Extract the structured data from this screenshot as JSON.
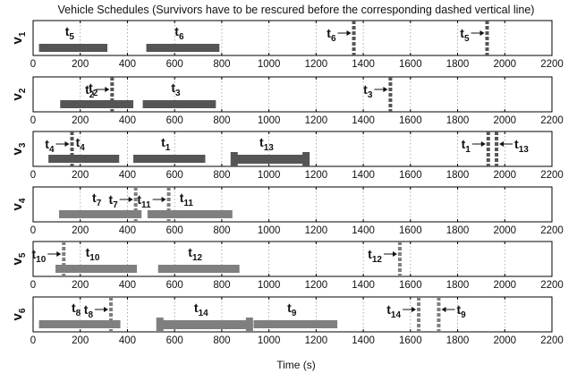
{
  "colors": {
    "dark": "#555555",
    "light": "#7f7f7f",
    "axis": "#000000",
    "grid": "#9a9a9a"
  },
  "chart_data": {
    "type": "gantt",
    "title": "Vehicle Schedules (Survivors have to be rescured before the corresponding dashed vertical line)",
    "xlabel": "Time (s)",
    "xlim": [
      0,
      2200
    ],
    "xticks": [
      "0",
      "200",
      "400",
      "600",
      "800",
      "1000",
      "1200",
      "1400",
      "1600",
      "1800",
      "2000",
      "2200"
    ],
    "grid": "vertical dotted",
    "vehicles": [
      {
        "label": "v",
        "sub": "1",
        "shade": "dark",
        "tasks": [
          {
            "task": "t",
            "sub": "5",
            "start": 25,
            "end": 315,
            "thick": false
          },
          {
            "task": "t",
            "sub": "6",
            "start": 480,
            "end": 790,
            "thick": false
          }
        ],
        "deadlines": [
          {
            "task": "t",
            "sub": "6",
            "time": 1360,
            "side": "left"
          },
          {
            "task": "t",
            "sub": "5",
            "time": 1925,
            "side": "left"
          }
        ]
      },
      {
        "label": "v",
        "sub": "2",
        "shade": "dark",
        "tasks": [
          {
            "task": "t",
            "sub": "2",
            "start": 115,
            "end": 425,
            "thick": false
          },
          {
            "task": "t",
            "sub": "3",
            "start": 465,
            "end": 775,
            "thick": false
          }
        ],
        "deadlines": [
          {
            "task": "t",
            "sub": "2",
            "time": 335,
            "side": "left"
          },
          {
            "task": "t",
            "sub": "3",
            "time": 1515,
            "side": "left"
          }
        ]
      },
      {
        "label": "v",
        "sub": "3",
        "shade": "dark",
        "tasks": [
          {
            "task": "t",
            "sub": "4",
            "start": 65,
            "end": 365,
            "thick": false
          },
          {
            "task": "t",
            "sub": "1",
            "start": 425,
            "end": 730,
            "thick": false
          },
          {
            "task": "t",
            "sub": "13",
            "start": 845,
            "end": 1165,
            "thick": true
          }
        ],
        "deadlines": [
          {
            "task": "t",
            "sub": "4",
            "time": 165,
            "side": "left"
          },
          {
            "task": "t",
            "sub": "1",
            "time": 1930,
            "side": "left"
          },
          {
            "task": "t",
            "sub": "13",
            "time": 1965,
            "side": "right"
          }
        ]
      },
      {
        "label": "v",
        "sub": "4",
        "shade": "light",
        "tasks": [
          {
            "task": "t",
            "sub": "7",
            "start": 110,
            "end": 460,
            "thick": false
          },
          {
            "task": "t",
            "sub": "11",
            "start": 485,
            "end": 845,
            "thick": false
          }
        ],
        "deadlines": [
          {
            "task": "t",
            "sub": "7",
            "time": 435,
            "side": "left"
          },
          {
            "task": "t",
            "sub": "11",
            "time": 575,
            "side": "left"
          }
        ]
      },
      {
        "label": "v",
        "sub": "5",
        "shade": "light",
        "tasks": [
          {
            "task": "t",
            "sub": "10",
            "start": 95,
            "end": 440,
            "thick": false
          },
          {
            "task": "t",
            "sub": "12",
            "start": 530,
            "end": 875,
            "thick": false
          }
        ],
        "deadlines": [
          {
            "task": "t",
            "sub": "10",
            "time": 130,
            "side": "left"
          },
          {
            "task": "t",
            "sub": "12",
            "time": 1555,
            "side": "left"
          }
        ]
      },
      {
        "label": "v",
        "sub": "6",
        "shade": "light",
        "tasks": [
          {
            "task": "t",
            "sub": "8",
            "start": 25,
            "end": 370,
            "thick": false
          },
          {
            "task": "t",
            "sub": "14",
            "start": 530,
            "end": 925,
            "thick": true
          },
          {
            "task": "t",
            "sub": "9",
            "start": 935,
            "end": 1290,
            "thick": false
          }
        ],
        "deadlines": [
          {
            "task": "t",
            "sub": "8",
            "time": 330,
            "side": "left"
          },
          {
            "task": "t",
            "sub": "14",
            "time": 1635,
            "side": "left"
          },
          {
            "task": "t",
            "sub": "9",
            "time": 1720,
            "side": "right"
          }
        ]
      }
    ]
  }
}
